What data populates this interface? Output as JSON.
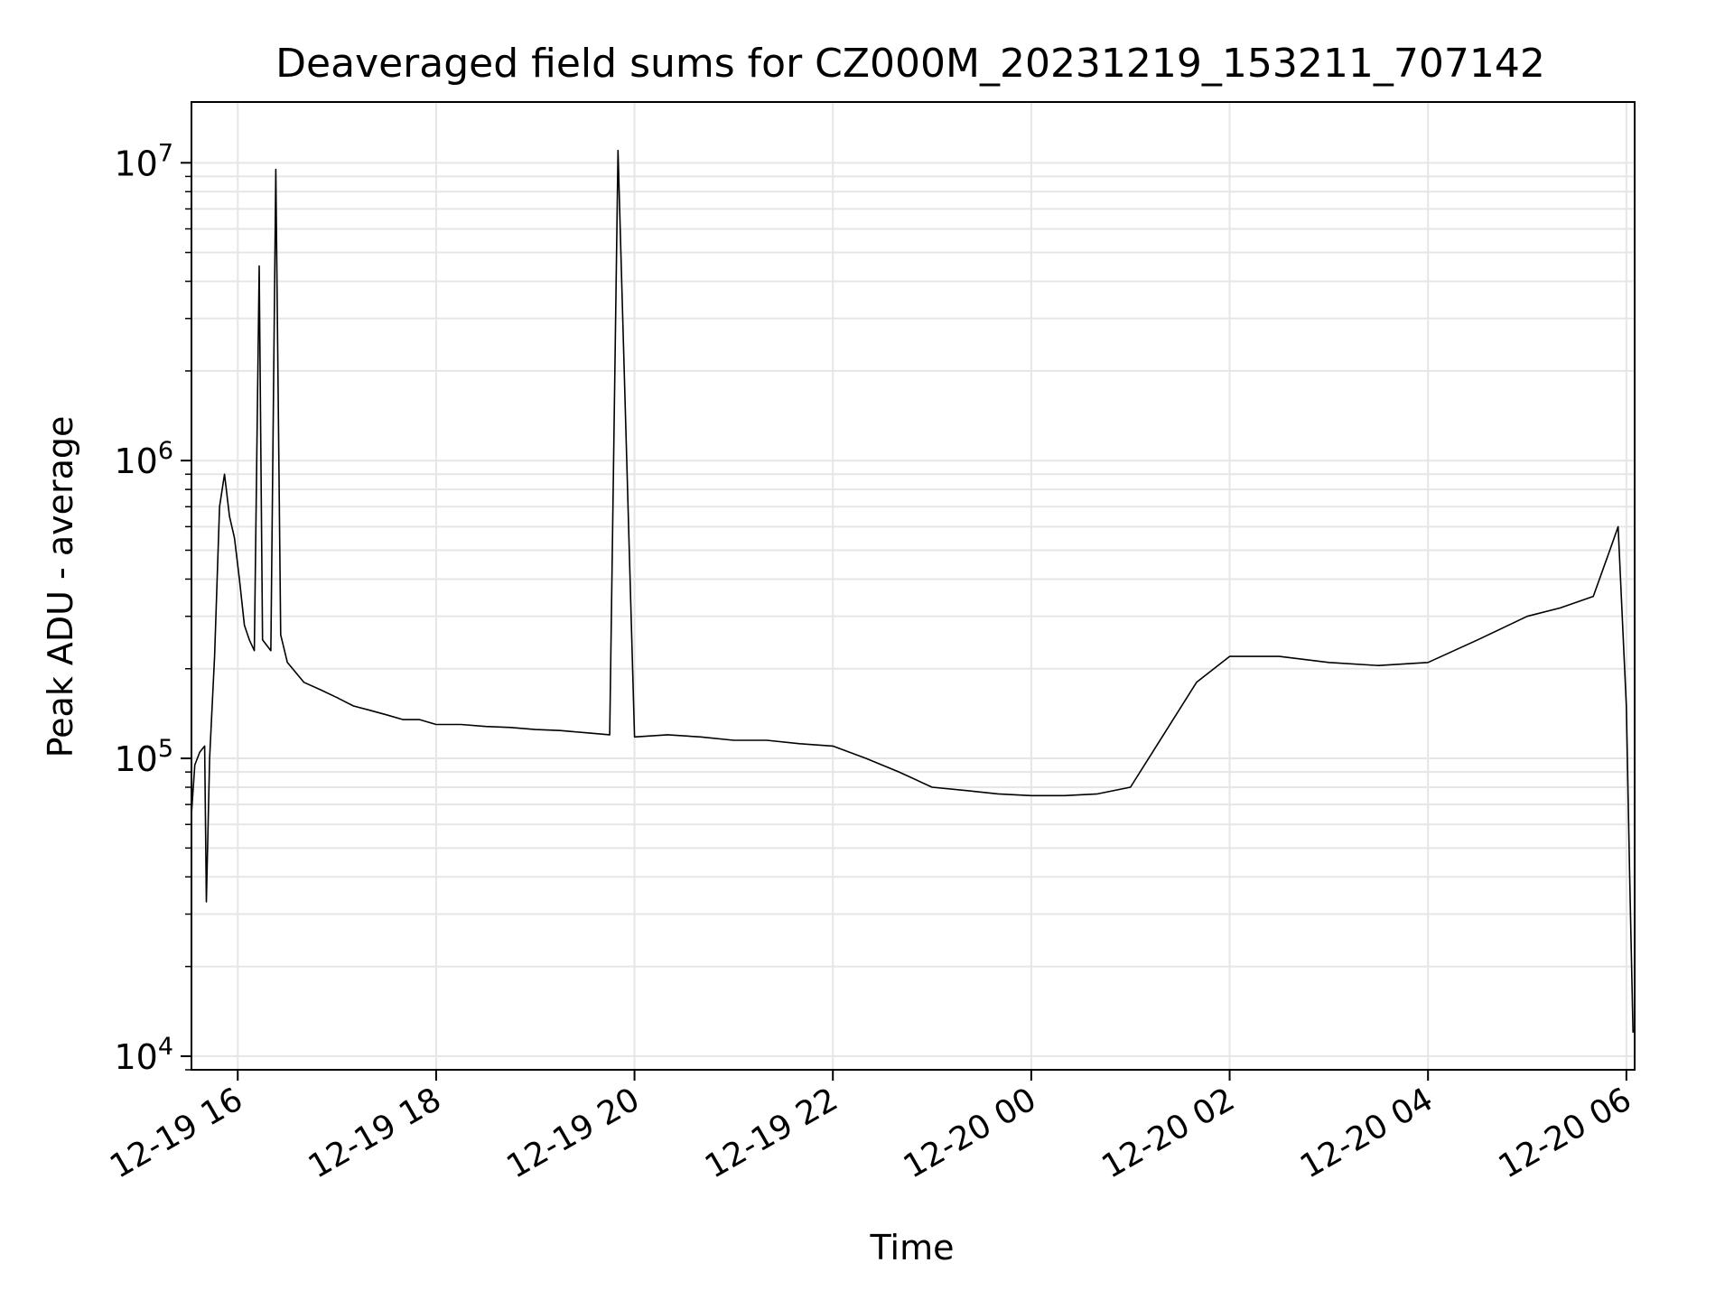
{
  "chart_data": {
    "type": "line",
    "title": "Deaveraged field sums for CZ000M_20231219_153211_707142",
    "xlabel": "Time",
    "ylabel": "Peak ADU - average",
    "yscale": "log",
    "grid": true,
    "legend": "none",
    "line_color": "#000000",
    "grid_color": "#e6e6e6",
    "xlim": [
      "2023-12-19 15:32",
      "2023-12-20 06:05"
    ],
    "ylim": [
      9000,
      16000000
    ],
    "x_ticks": [
      {
        "label": "12-19 16",
        "value": "2023-12-19 16:00"
      },
      {
        "label": "12-19 18",
        "value": "2023-12-19 18:00"
      },
      {
        "label": "12-19 20",
        "value": "2023-12-19 20:00"
      },
      {
        "label": "12-19 22",
        "value": "2023-12-19 22:00"
      },
      {
        "label": "12-20 00",
        "value": "2023-12-20 00:00"
      },
      {
        "label": "12-20 02",
        "value": "2023-12-20 02:00"
      },
      {
        "label": "12-20 04",
        "value": "2023-12-20 04:00"
      },
      {
        "label": "12-20 06",
        "value": "2023-12-20 06:00"
      }
    ],
    "y_ticks": [
      {
        "base": "10",
        "exp": "4",
        "value": 10000
      },
      {
        "base": "10",
        "exp": "5",
        "value": 100000
      },
      {
        "base": "10",
        "exp": "6",
        "value": 1000000
      },
      {
        "base": "10",
        "exp": "7",
        "value": 10000000
      }
    ],
    "series": [
      {
        "x": [
          "2023-12-19 15:32",
          "2023-12-19 15:34",
          "2023-12-19 15:37",
          "2023-12-19 15:40",
          "2023-12-19 15:41",
          "2023-12-19 15:43",
          "2023-12-19 15:46",
          "2023-12-19 15:49",
          "2023-12-19 15:52",
          "2023-12-19 15:55",
          "2023-12-19 15:58",
          "2023-12-19 16:01",
          "2023-12-19 16:04",
          "2023-12-19 16:07",
          "2023-12-19 16:10",
          "2023-12-19 16:13",
          "2023-12-19 16:15",
          "2023-12-19 16:20",
          "2023-12-19 16:23",
          "2023-12-19 16:26",
          "2023-12-19 16:30",
          "2023-12-19 16:40",
          "2023-12-19 16:50",
          "2023-12-19 17:00",
          "2023-12-19 17:10",
          "2023-12-19 17:20",
          "2023-12-19 17:30",
          "2023-12-19 17:40",
          "2023-12-19 17:50",
          "2023-12-19 18:00",
          "2023-12-19 18:15",
          "2023-12-19 18:30",
          "2023-12-19 18:45",
          "2023-12-19 19:00",
          "2023-12-19 19:15",
          "2023-12-19 19:30",
          "2023-12-19 19:45",
          "2023-12-19 19:50",
          "2023-12-19 20:00",
          "2023-12-19 20:20",
          "2023-12-19 20:40",
          "2023-12-19 21:00",
          "2023-12-19 21:20",
          "2023-12-19 21:40",
          "2023-12-19 22:00",
          "2023-12-19 22:20",
          "2023-12-19 22:40",
          "2023-12-19 23:00",
          "2023-12-19 23:20",
          "2023-12-19 23:40",
          "2023-12-20 00:00",
          "2023-12-20 00:20",
          "2023-12-20 00:40",
          "2023-12-20 01:00",
          "2023-12-20 01:20",
          "2023-12-20 01:40",
          "2023-12-20 02:00",
          "2023-12-20 02:30",
          "2023-12-20 03:00",
          "2023-12-20 03:30",
          "2023-12-20 04:00",
          "2023-12-20 04:30",
          "2023-12-20 05:00",
          "2023-12-20 05:20",
          "2023-12-20 05:40",
          "2023-12-20 05:50",
          "2023-12-20 05:55",
          "2023-12-20 06:00",
          "2023-12-20 06:02",
          "2023-12-20 06:04"
        ],
        "values": [
          65000,
          95000,
          105000,
          110000,
          33000,
          100000,
          220000,
          700000,
          900000,
          650000,
          550000,
          400000,
          280000,
          250000,
          230000,
          4500000,
          250000,
          230000,
          9500000,
          260000,
          210000,
          180000,
          170000,
          160000,
          150000,
          145000,
          140000,
          135000,
          135000,
          130000,
          130000,
          128000,
          127000,
          125000,
          124000,
          122000,
          120000,
          11000000,
          118000,
          120000,
          118000,
          115000,
          115000,
          112000,
          110000,
          100000,
          90000,
          80000,
          78000,
          76000,
          75000,
          75000,
          76000,
          80000,
          120000,
          180000,
          220000,
          220000,
          210000,
          205000,
          210000,
          250000,
          300000,
          320000,
          350000,
          500000,
          600000,
          150000,
          40000,
          12000
        ]
      }
    ]
  }
}
